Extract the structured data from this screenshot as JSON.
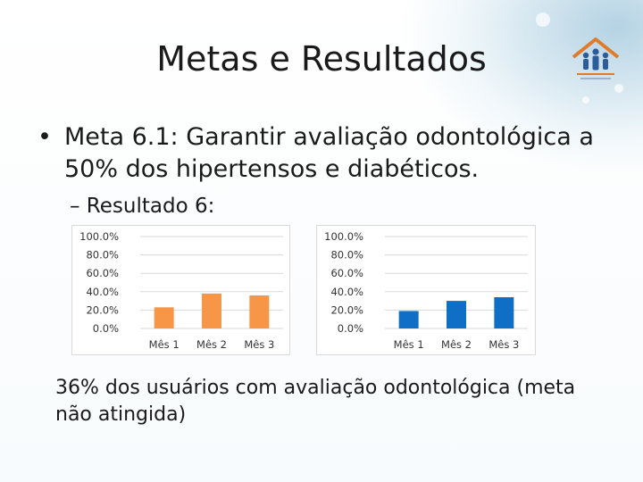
{
  "slide": {
    "title": "Metas e Resultados",
    "bullet_marker": "•",
    "bullet_text": "Meta 6.1: Garantir avaliação odontológica a 50% dos hipertensos e diabéticos.",
    "sub_bullet": "– Resultado 6:",
    "result_text": "36% dos usuários com avaliação odontológica (meta não atingida)"
  },
  "colors": {
    "orange": "#f79646",
    "blue": "#0f6fc6",
    "grid": "#d9d9d9"
  },
  "chart_data": [
    {
      "type": "bar",
      "categories": [
        "Mês 1",
        "Mês 2",
        "Mês 3"
      ],
      "values": [
        23,
        38,
        36
      ],
      "ylim": [
        0,
        100
      ],
      "yticks": [
        "100.0%",
        "80.0%",
        "60.0%",
        "40.0%",
        "20.0%",
        "0.0%"
      ],
      "color": "#f79646",
      "grid": true
    },
    {
      "type": "bar",
      "categories": [
        "Mês 1",
        "Mês 2",
        "Mês 3"
      ],
      "values": [
        19,
        30,
        34
      ],
      "ylim": [
        0,
        100
      ],
      "yticks": [
        "100.0%",
        "80.0%",
        "60.0%",
        "40.0%",
        "20.0%",
        "0.0%"
      ],
      "color": "#0f6fc6",
      "grid": true
    }
  ]
}
